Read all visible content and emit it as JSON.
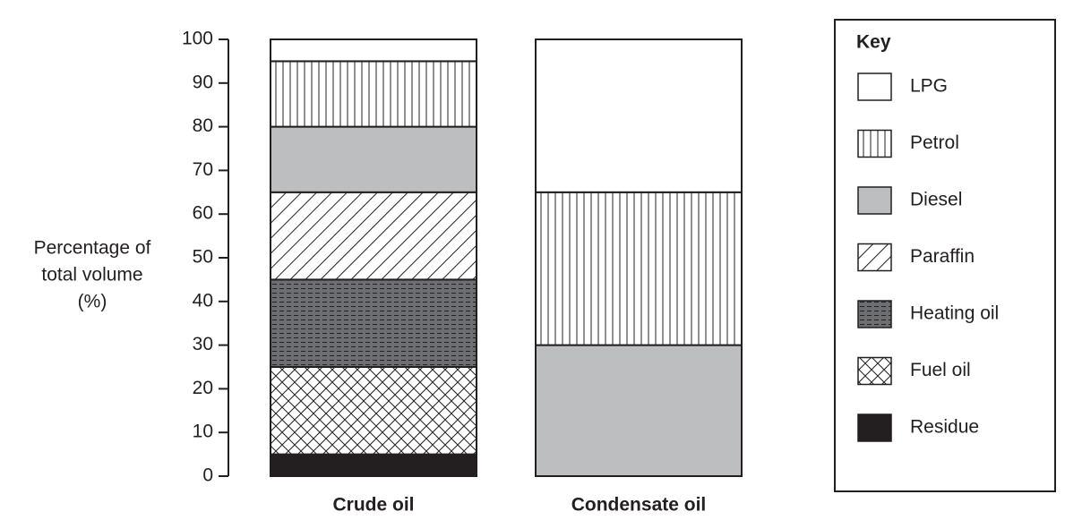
{
  "chart_data": {
    "type": "stacked_bar",
    "ylabel": [
      "Percentage of",
      "total volume",
      "(%)"
    ],
    "categories": [
      "Crude oil",
      "Condensate oil"
    ],
    "series": [
      {
        "name": "Residue",
        "color": "#231f20",
        "pattern": "none",
        "values": [
          5,
          0
        ]
      },
      {
        "name": "Fuel oil",
        "color": "#ffffff",
        "pattern": "cross",
        "values": [
          20,
          0
        ]
      },
      {
        "name": "Heating oil",
        "color": "#6d6e71",
        "pattern": "dashed",
        "values": [
          20,
          0
        ]
      },
      {
        "name": "Paraffin",
        "color": "#ffffff",
        "pattern": "diagonal",
        "values": [
          20,
          0
        ]
      },
      {
        "name": "Diesel",
        "color": "#bcbec0",
        "pattern": "none",
        "values": [
          15,
          30
        ]
      },
      {
        "name": "Petrol",
        "color": "#ffffff",
        "pattern": "vertical",
        "values": [
          15,
          35
        ]
      },
      {
        "name": "LPG",
        "color": "#ffffff",
        "pattern": "none",
        "values": [
          5,
          35
        ]
      }
    ],
    "legend_title": "Key",
    "legend": "right",
    "ylim": [
      0,
      100
    ],
    "yticks": [
      0,
      10,
      20,
      30,
      40,
      50,
      60,
      70,
      80,
      90,
      100
    ]
  }
}
